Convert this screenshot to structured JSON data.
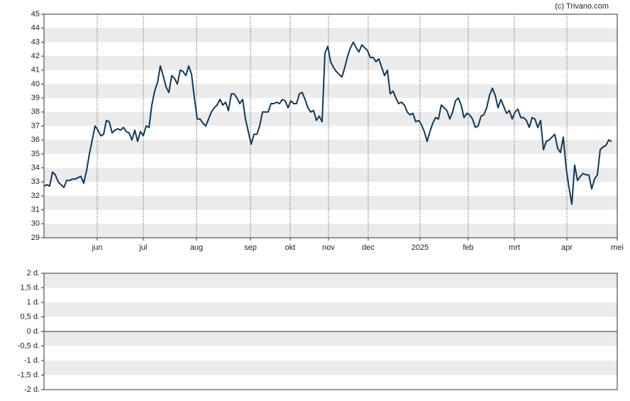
{
  "credit": "(c) Trivano.com",
  "chart_data": [
    {
      "type": "line",
      "xlim": [
        0,
        202
      ],
      "xticks": [
        {
          "value": 18.75,
          "label": "jun"
        },
        {
          "value": 35,
          "label": "jul"
        },
        {
          "value": 53.75,
          "label": "aug"
        },
        {
          "value": 72.75,
          "label": "sep"
        },
        {
          "value": 86.75,
          "label": "okt"
        },
        {
          "value": 100.25,
          "label": "nov"
        },
        {
          "value": 114.25,
          "label": "dec"
        },
        {
          "value": 132.5,
          "label": "2025"
        },
        {
          "value": 149.5,
          "label": "feb"
        },
        {
          "value": 165.75,
          "label": "mrt"
        },
        {
          "value": 184.25,
          "label": "apr"
        },
        {
          "value": 202,
          "label": "mei"
        }
      ],
      "ylim": [
        29,
        45
      ],
      "yticks": [
        29,
        30,
        31,
        32,
        33,
        34,
        35,
        36,
        37,
        38,
        39,
        40,
        41,
        42,
        43,
        44,
        45
      ],
      "grid": true,
      "series": [
        {
          "color": "#0e3a5a",
          "values": [
            32.7,
            32.8,
            32.7,
            33.7,
            33.5,
            33.0,
            32.8,
            32.6,
            33.1,
            33.1,
            33.2,
            33.2,
            33.3,
            33.4,
            32.9,
            33.8,
            35.0,
            36.0,
            37.0,
            36.7,
            36.3,
            36.4,
            37.4,
            37.3,
            36.5,
            36.7,
            36.8,
            36.7,
            36.9,
            36.6,
            36.5,
            36.0,
            36.7,
            35.9,
            36.6,
            36.3,
            37.0,
            36.9,
            38.5,
            39.5,
            40.1,
            41.3,
            40.6,
            39.8,
            39.4,
            40.6,
            40.4,
            40.0,
            41.0,
            40.9,
            40.6,
            41.3,
            40.7,
            39.0,
            37.5,
            37.5,
            37.2,
            37.0,
            37.5,
            38.0,
            38.3,
            38.5,
            38.9,
            38.5,
            38.7,
            38.1,
            39.3,
            39.3,
            39.0,
            38.6,
            38.9,
            37.5,
            36.6,
            35.7,
            36.4,
            36.4,
            37.0,
            38.0,
            38.0,
            38.0,
            38.6,
            38.6,
            38.7,
            38.6,
            38.9,
            38.8,
            38.3,
            38.8,
            38.6,
            38.6,
            39.3,
            39.4,
            38.9,
            38.3,
            38.0,
            38.1,
            37.4,
            37.7,
            37.3,
            42.2,
            42.7,
            41.6,
            41.2,
            40.9,
            40.7,
            40.5,
            41.2,
            42.0,
            42.6,
            43.0,
            42.6,
            42.3,
            42.8,
            42.6,
            42.4,
            41.9,
            41.9,
            41.6,
            41.8,
            41.2,
            40.6,
            41.0,
            39.3,
            39.5,
            39.0,
            38.6,
            38.7,
            38.5,
            38.0,
            37.8,
            37.9,
            37.3,
            37.4,
            37.1,
            36.6,
            35.9,
            36.6,
            37.2,
            37.6,
            37.5,
            38.5,
            38.3,
            38.1,
            37.5,
            38.0,
            38.8,
            39.0,
            38.5,
            37.6,
            37.9,
            37.8,
            37.5,
            36.9,
            37.0,
            37.7,
            37.8,
            38.3,
            39.2,
            39.7,
            39.2,
            38.3,
            38.9,
            38.4,
            37.9,
            38.1,
            37.5,
            38.0,
            38.2,
            37.6,
            37.6,
            37.4,
            36.9,
            37.6,
            37.5,
            36.9,
            37.4,
            35.3,
            35.9,
            36.0,
            36.2,
            36.4,
            35.4,
            35.1,
            36.2,
            34.0,
            32.6,
            31.4,
            34.2,
            33.1,
            33.4,
            33.6,
            33.5,
            33.5,
            32.5,
            33.2,
            33.5,
            35.3,
            35.5,
            35.6,
            36.0,
            35.9
          ]
        }
      ]
    },
    {
      "type": "line",
      "ylim": [
        -2,
        2
      ],
      "yticks": [
        {
          "value": 2,
          "label": "2 d."
        },
        {
          "value": 1.5,
          "label": "1,5 d."
        },
        {
          "value": 1,
          "label": "1 d."
        },
        {
          "value": 0.5,
          "label": "0,5 d."
        },
        {
          "value": 0,
          "label": "0 d."
        },
        {
          "value": -0.5,
          "label": "-0,5 d."
        },
        {
          "value": -1,
          "label": "-1 d."
        },
        {
          "value": -1.5,
          "label": "-1,5 d."
        },
        {
          "value": -2,
          "label": "-2 d."
        }
      ],
      "grid": true,
      "series": []
    }
  ]
}
